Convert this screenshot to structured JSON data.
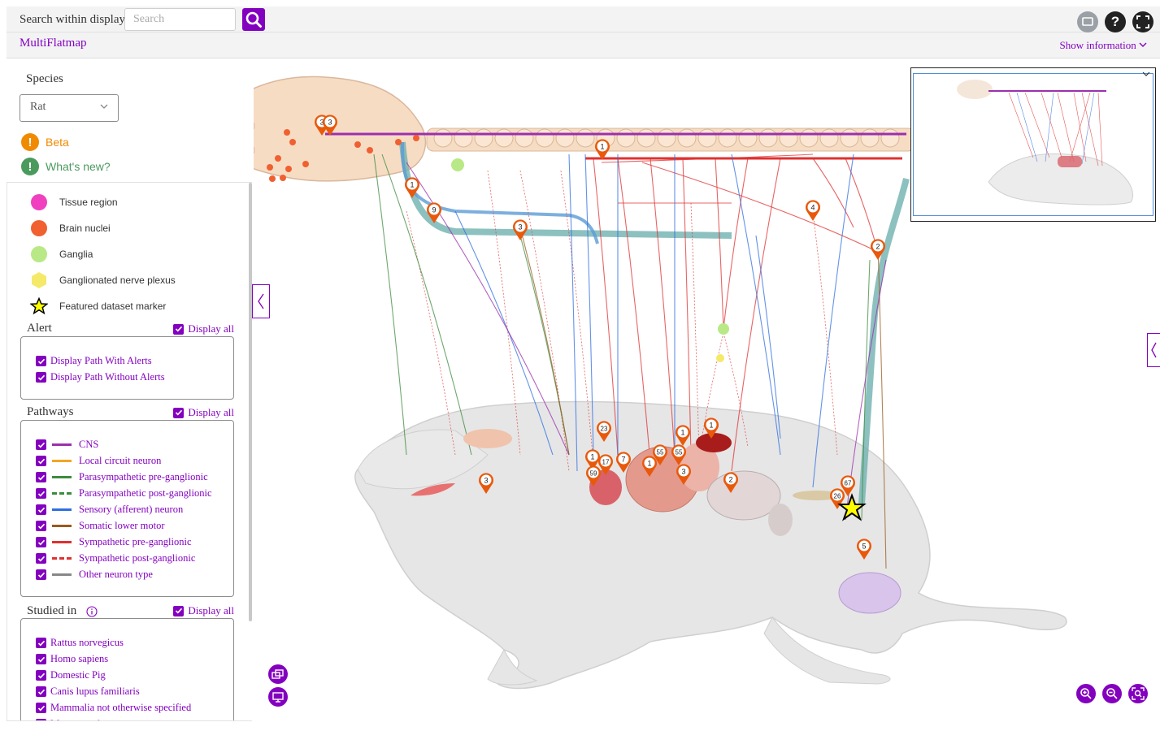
{
  "topbar": {
    "search_label": "Search within display",
    "search_placeholder": "Search"
  },
  "subbar": {
    "app_title": "MultiFlatmap",
    "show_information": "Show information"
  },
  "sidebar": {
    "species_label": "Species",
    "species_value": "Rat",
    "beta_label": "Beta",
    "whats_new_label": "What's new?",
    "legend": [
      {
        "label": "Tissue region",
        "color": "#f040c0",
        "shape": "circle"
      },
      {
        "label": "Brain nuclei",
        "color": "#f06030",
        "shape": "circle"
      },
      {
        "label": "Ganglia",
        "color": "#b8e986",
        "shape": "circle"
      },
      {
        "label": "Ganglionated nerve plexus",
        "color": "#f5e96a",
        "shape": "hexagon"
      },
      {
        "label": "Featured dataset marker",
        "color": "#ffff00",
        "shape": "star"
      }
    ],
    "alert": {
      "title": "Alert",
      "display_all": "Display all",
      "items": [
        "Display Path With Alerts",
        "Display Path Without Alerts"
      ]
    },
    "pathways": {
      "title": "Pathways",
      "display_all": "Display all",
      "items": [
        {
          "label": "CNS",
          "color": "#9b2fae",
          "style": "solid"
        },
        {
          "label": "Local circuit neuron",
          "color": "#f5a623",
          "style": "solid"
        },
        {
          "label": "Parasympathetic pre-ganglionic",
          "color": "#3d8b3d",
          "style": "solid"
        },
        {
          "label": "Parasympathetic post-ganglionic",
          "color": "#3d8b3d",
          "style": "dashed"
        },
        {
          "label": "Sensory (afferent) neuron",
          "color": "#2f6ee0",
          "style": "solid"
        },
        {
          "label": "Somatic lower motor",
          "color": "#9a5a1e",
          "style": "solid"
        },
        {
          "label": "Sympathetic pre-ganglionic",
          "color": "#e03030",
          "style": "solid"
        },
        {
          "label": "Sympathetic post-ganglionic",
          "color": "#e03030",
          "style": "dashed"
        },
        {
          "label": "Other neuron type",
          "color": "#888888",
          "style": "solid"
        }
      ]
    },
    "studied_in": {
      "title": "Studied in",
      "display_all": "Display all",
      "items": [
        "Rattus norvegicus",
        "Homo sapiens",
        "Domestic Pig",
        "Canis lupus familiaris",
        "Mammalia not otherwise specified",
        "Mus musculus"
      ]
    }
  },
  "map": {
    "markers": [
      "3",
      "3",
      "1",
      "1",
      "9",
      "3",
      "4",
      "2",
      "23",
      "1",
      "1",
      "1",
      "55",
      "55",
      "17",
      "7",
      "59",
      "1",
      "3",
      "2",
      "3",
      "67",
      "26",
      "5"
    ]
  },
  "colors": {
    "accent": "#8300bf",
    "marker_orange": "#e8590c",
    "beta_orange": "#f08a00",
    "whats_new_green": "#4a9a5e"
  }
}
